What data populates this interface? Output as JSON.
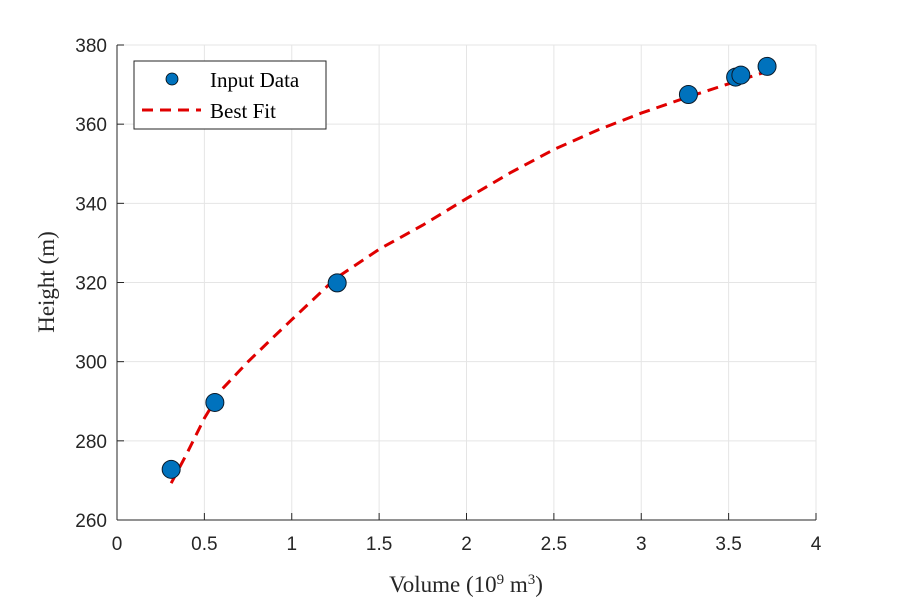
{
  "chart_data": {
    "type": "scatter",
    "xlabel": {
      "base": "Volume (10",
      "exp1": "9",
      "mid": " m",
      "exp2": "3",
      "end": ")"
    },
    "ylabel": "Height (m)",
    "xlim": [
      0,
      4
    ],
    "ylim": [
      260,
      380
    ],
    "xticks": [
      0,
      0.5,
      1,
      1.5,
      2,
      2.5,
      3,
      3.5,
      4
    ],
    "xtick_labels": [
      "0",
      "0.5",
      "1",
      "1.5",
      "2",
      "2.5",
      "3",
      "3.5",
      "4"
    ],
    "yticks": [
      260,
      280,
      300,
      320,
      340,
      360,
      380
    ],
    "ytick_labels": [
      "260",
      "280",
      "300",
      "320",
      "340",
      "360",
      "380"
    ],
    "grid": true,
    "legend_position": "top-left",
    "series": [
      {
        "name": "Input Data",
        "kind": "markers",
        "color": "#0072BD",
        "points": [
          {
            "x": 0.31,
            "y": 272.8
          },
          {
            "x": 0.56,
            "y": 289.7
          },
          {
            "x": 1.26,
            "y": 319.9
          },
          {
            "x": 3.27,
            "y": 367.5
          },
          {
            "x": 3.54,
            "y": 371.9
          },
          {
            "x": 3.57,
            "y": 372.4
          },
          {
            "x": 3.72,
            "y": 374.6
          }
        ]
      },
      {
        "name": "Best Fit",
        "kind": "dashed-line",
        "color": "#E00000",
        "points": [
          {
            "x": 0.31,
            "y": 269.3
          },
          {
            "x": 0.4,
            "y": 276.8
          },
          {
            "x": 0.5,
            "y": 285.7
          },
          {
            "x": 0.6,
            "y": 293.0
          },
          {
            "x": 0.75,
            "y": 300.0
          },
          {
            "x": 0.9,
            "y": 306.4
          },
          {
            "x": 1.0,
            "y": 310.6
          },
          {
            "x": 1.25,
            "y": 321.0
          },
          {
            "x": 1.5,
            "y": 328.4
          },
          {
            "x": 1.75,
            "y": 334.5
          },
          {
            "x": 2.0,
            "y": 341.2
          },
          {
            "x": 2.25,
            "y": 347.7
          },
          {
            "x": 2.5,
            "y": 353.6
          },
          {
            "x": 2.75,
            "y": 358.5
          },
          {
            "x": 3.0,
            "y": 362.8
          },
          {
            "x": 3.25,
            "y": 366.6
          },
          {
            "x": 3.5,
            "y": 370.2
          },
          {
            "x": 3.72,
            "y": 373.3
          }
        ]
      }
    ]
  }
}
